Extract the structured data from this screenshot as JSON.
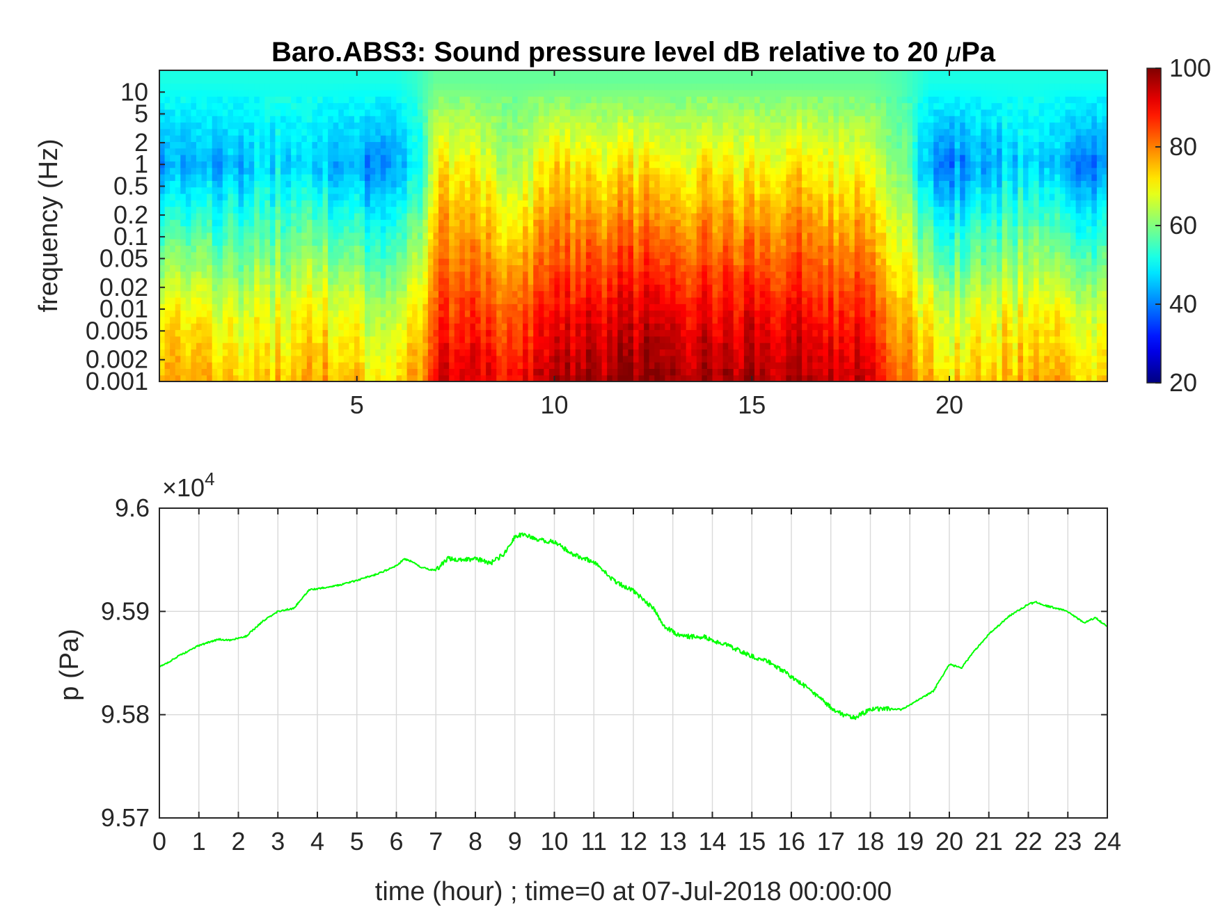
{
  "figure": {
    "title_prefix": "Baro.ABS3: Sound pressure level dB relative to 20 ",
    "title_mu": "μ",
    "title_suffix": "Pa"
  },
  "chart_data": [
    {
      "type": "heatmap",
      "title": "Baro.ABS3: Sound pressure level dB relative to 20 μPa",
      "xlabel": "",
      "ylabel": "frequency (Hz)",
      "xlim": [
        0,
        24
      ],
      "x_ticks": [
        5,
        10,
        15,
        20
      ],
      "x_tick_labels": [
        "5",
        "10",
        "15",
        "20"
      ],
      "y_scale": "log",
      "ylim": [
        0.001,
        20
      ],
      "y_ticks": [
        0.001,
        0.002,
        0.005,
        0.01,
        0.02,
        0.05,
        0.1,
        0.2,
        0.5,
        1,
        2,
        5,
        10
      ],
      "y_tick_labels": [
        "0.001",
        "0.002",
        "0.005",
        "0.01",
        "0.02",
        "0.05",
        "0.1",
        "0.2",
        "0.5",
        "1",
        "2",
        "5",
        "10"
      ],
      "colormap": "jet",
      "colorbar": {
        "range": [
          20,
          100
        ],
        "ticks": [
          20,
          40,
          60,
          80,
          100
        ],
        "tick_labels": [
          "20",
          "40",
          "60",
          "80",
          "100"
        ]
      },
      "level_envelope_db": {
        "time_hour": [
          0,
          1,
          2,
          3,
          4,
          5,
          6,
          6.5,
          7,
          8,
          9,
          10,
          11,
          12,
          13,
          14,
          15,
          16,
          17,
          18,
          18.8,
          19.5,
          20,
          21,
          22,
          23,
          24
        ],
        "level_at_0p01hz": [
          72,
          68,
          66,
          68,
          70,
          66,
          62,
          70,
          86,
          86,
          84,
          88,
          90,
          92,
          92,
          90,
          91,
          90,
          88,
          86,
          74,
          68,
          66,
          68,
          70,
          68,
          66
        ],
        "level_at_1hz": [
          44,
          42,
          44,
          48,
          46,
          42,
          40,
          48,
          72,
          70,
          64,
          72,
          70,
          72,
          70,
          72,
          70,
          72,
          70,
          68,
          60,
          42,
          40,
          44,
          48,
          42,
          40
        ],
        "level_at_10hz": [
          52,
          52,
          52,
          52,
          52,
          52,
          52,
          54,
          58,
          58,
          58,
          58,
          58,
          58,
          58,
          58,
          58,
          58,
          58,
          58,
          56,
          52,
          52,
          52,
          52,
          52,
          52
        ]
      }
    },
    {
      "type": "line",
      "title": "",
      "xlabel": "time (hour) ; time=0 at 07-Jul-2018 00:00:00",
      "ylabel": "p (Pa)",
      "y_exponent_label_base": "×10",
      "y_exponent_label_power": "4",
      "xlim": [
        0,
        24
      ],
      "ylim": [
        95700,
        96000
      ],
      "x_ticks": [
        0,
        1,
        2,
        3,
        4,
        5,
        6,
        7,
        8,
        9,
        10,
        11,
        12,
        13,
        14,
        15,
        16,
        17,
        18,
        19,
        20,
        21,
        22,
        23,
        24
      ],
      "x_tick_labels": [
        "0",
        "1",
        "2",
        "3",
        "4",
        "5",
        "6",
        "7",
        "8",
        "9",
        "10",
        "11",
        "12",
        "13",
        "14",
        "15",
        "16",
        "17",
        "18",
        "19",
        "20",
        "21",
        "22",
        "23",
        "24"
      ],
      "y_ticks": [
        95700,
        95800,
        95900,
        96000
      ],
      "y_tick_labels": [
        "9.57",
        "9.58",
        "9.59",
        "9.6"
      ],
      "grid": true,
      "series": [
        {
          "color": "#00ff00",
          "x": [
            0,
            0.5,
            1,
            1.5,
            1.8,
            2.2,
            2.6,
            3,
            3.4,
            3.8,
            4.2,
            4.6,
            5,
            5.5,
            6,
            6.2,
            6.4,
            6.6,
            6.8,
            7,
            7.3,
            7.6,
            8,
            8.4,
            8.7,
            9,
            9.2,
            9.5,
            10,
            10.5,
            11,
            11.5,
            12,
            12.5,
            12.8,
            13.2,
            13.8,
            14.5,
            15,
            15.5,
            16,
            16.5,
            17,
            17.3,
            17.6,
            18,
            18.4,
            18.8,
            19.2,
            19.6,
            20,
            20.3,
            20.6,
            21,
            21.5,
            22,
            22.2,
            22.5,
            23,
            23.4,
            23.7,
            24
          ],
          "y": [
            95846,
            95857,
            95867,
            95873,
            95872,
            95876,
            95890,
            95900,
            95903,
            95921,
            95923,
            95926,
            95930,
            95936,
            95944,
            95951,
            95948,
            95943,
            95941,
            95940,
            95951,
            95950,
            95951,
            95947,
            95955,
            95972,
            95975,
            95970,
            95967,
            95955,
            95948,
            95930,
            95920,
            95903,
            95885,
            95876,
            95875,
            95865,
            95857,
            95850,
            95837,
            95823,
            95807,
            95800,
            95797,
            95805,
            95806,
            95805,
            95814,
            95823,
            95849,
            95845,
            95860,
            95878,
            95895,
            95907,
            95909,
            95905,
            95900,
            95889,
            95894,
            95885
          ]
        }
      ]
    }
  ]
}
